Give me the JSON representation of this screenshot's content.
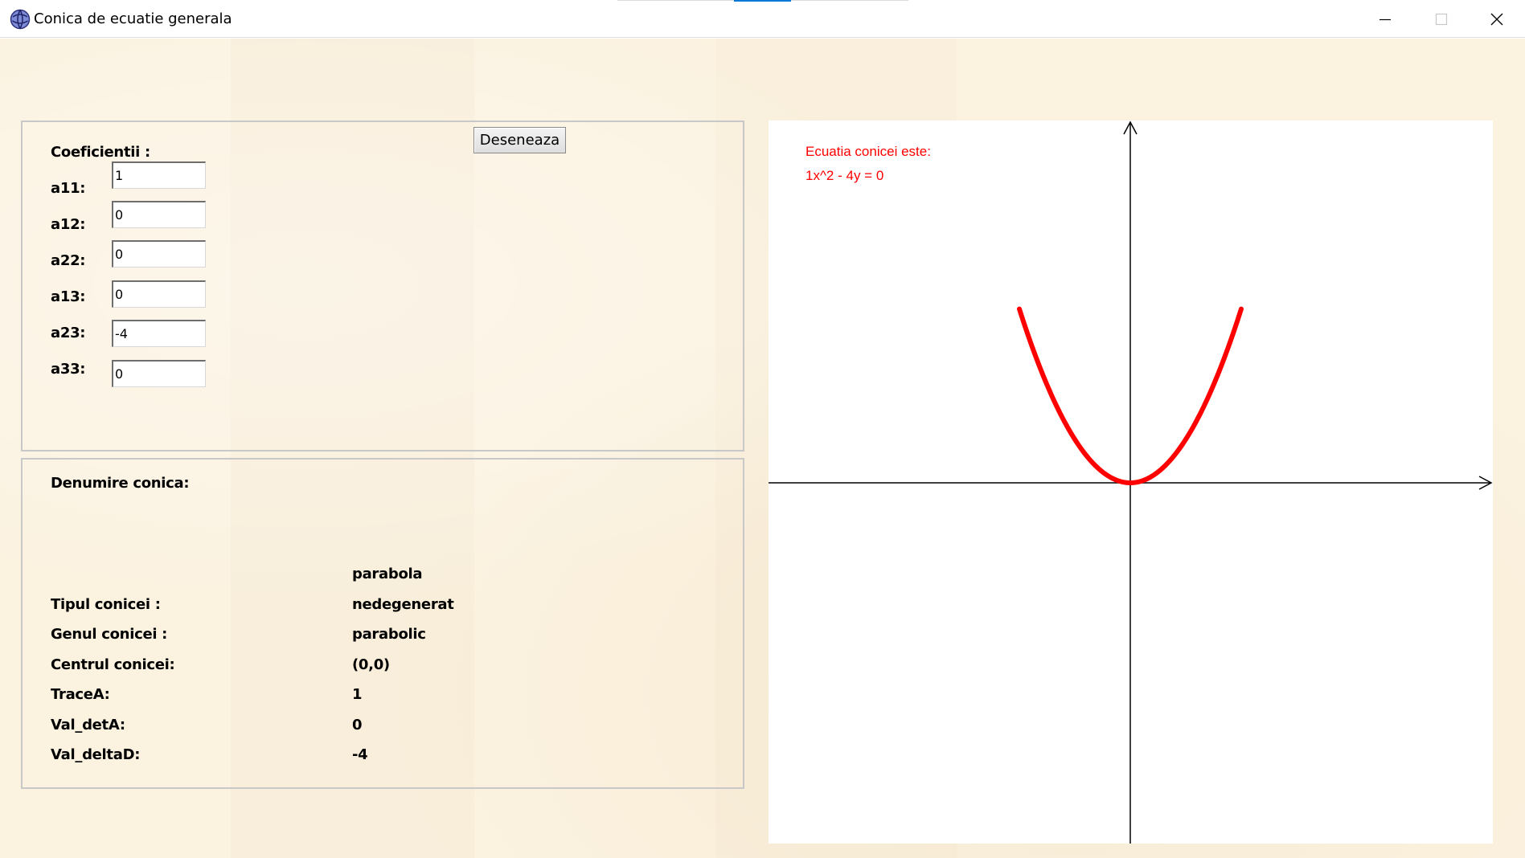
{
  "window": {
    "title": "Conica de ecuatie generala",
    "icon": "app-globe-icon",
    "controls": [
      "minimize-icon",
      "maximize-icon",
      "close-icon"
    ]
  },
  "coefficients": {
    "heading": "Coeficientii :",
    "fields": [
      {
        "label": "a11:",
        "value": "1"
      },
      {
        "label": "a12:",
        "value": "0"
      },
      {
        "label": "a22:",
        "value": "0"
      },
      {
        "label": "a13:",
        "value": "0"
      },
      {
        "label": "a23:",
        "value": "-4"
      },
      {
        "label": "a33:",
        "value": "0"
      }
    ],
    "draw_button": "Deseneaza"
  },
  "info": {
    "heading": "Denumire conica:",
    "name_value": "parabola",
    "rows": [
      {
        "label": "Tipul conicei :",
        "value": "nedegenerat"
      },
      {
        "label": "Genul conicei :",
        "value": "parabolic"
      },
      {
        "label": "Centrul conicei:",
        "value": "(0,0)"
      },
      {
        "label": "TraceA:",
        "value": "1"
      },
      {
        "label": "Val_detA:",
        "value": "0"
      },
      {
        "label": "Val_deltaD:",
        "value": "-4"
      }
    ]
  },
  "plot": {
    "equation_caption": "Ecuatia conicei este:",
    "equation": "1x^2 - 4y = 0",
    "curve_color": "#ff0000",
    "axis_color": "#000000"
  }
}
